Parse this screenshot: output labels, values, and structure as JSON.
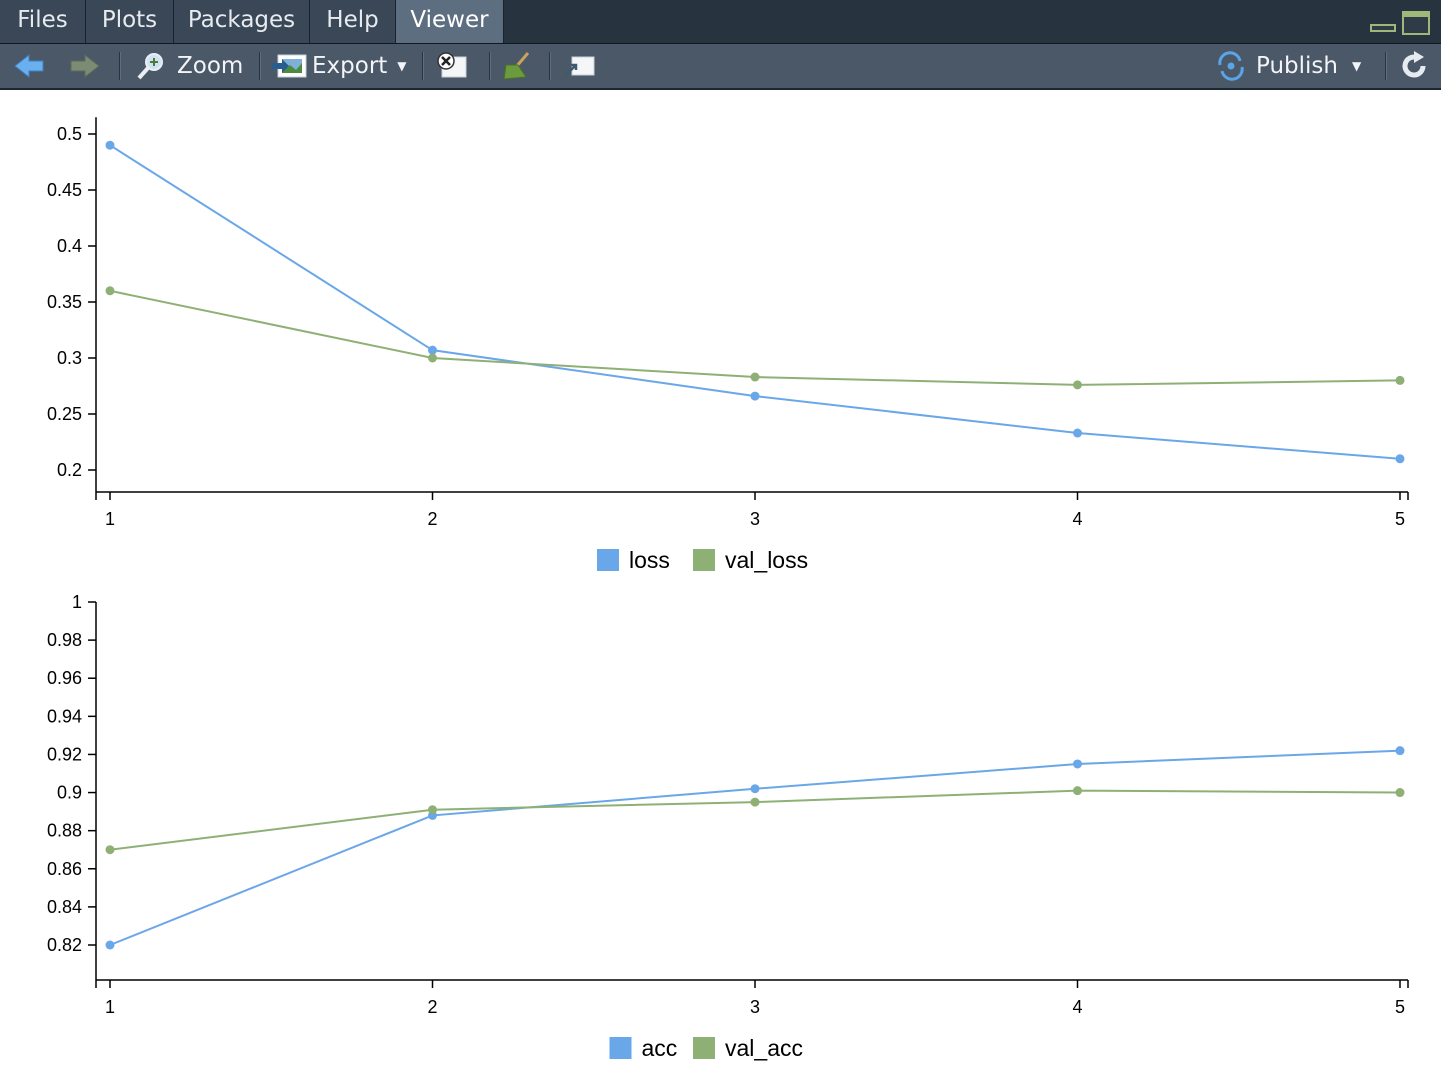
{
  "tabs": [
    {
      "label": "Files",
      "active": false
    },
    {
      "label": "Plots",
      "active": false
    },
    {
      "label": "Packages",
      "active": false
    },
    {
      "label": "Help",
      "active": false
    },
    {
      "label": "Viewer",
      "active": true
    }
  ],
  "toolbar": {
    "back_icon": "back-arrow-icon",
    "forward_icon": "forward-arrow-icon",
    "zoom_label": "Zoom",
    "export_label": "Export",
    "remove_icon": "remove-viewer-icon",
    "clear_icon": "broom-icon",
    "popout_icon": "popout-icon",
    "publish_label": "Publish",
    "refresh_icon": "refresh-icon"
  },
  "colors": {
    "series_a": "#6aa7e8",
    "series_b": "#8fb074",
    "tab_bg": "#3a4756",
    "tab_active": "#5d6e80",
    "toolbar_bg": "#4a5868"
  },
  "chart_data": [
    {
      "type": "line",
      "x": [
        1,
        2,
        3,
        4,
        5
      ],
      "series": [
        {
          "name": "loss",
          "values": [
            0.49,
            0.307,
            0.266,
            0.233,
            0.21
          ]
        },
        {
          "name": "val_loss",
          "values": [
            0.36,
            0.3,
            0.283,
            0.276,
            0.28
          ]
        }
      ],
      "yticks": [
        0.2,
        0.25,
        0.3,
        0.35,
        0.4,
        0.45,
        0.5
      ],
      "ytick_labels": [
        "0.2",
        "0.25",
        "0.3",
        "0.35",
        "0.4",
        "0.45",
        "0.5"
      ],
      "xticks": [
        1,
        2,
        3,
        4,
        5
      ],
      "xtick_labels": [
        "1",
        "2",
        "3",
        "4",
        "5"
      ],
      "ylim": [
        0.18,
        0.515
      ],
      "xlim": [
        1,
        5
      ],
      "grid": false,
      "legend": "bottom-center"
    },
    {
      "type": "line",
      "x": [
        1,
        2,
        3,
        4,
        5
      ],
      "series": [
        {
          "name": "acc",
          "values": [
            0.82,
            0.888,
            0.902,
            0.915,
            0.922
          ]
        },
        {
          "name": "val_acc",
          "values": [
            0.87,
            0.891,
            0.895,
            0.901,
            0.9
          ]
        }
      ],
      "yticks": [
        0.82,
        0.84,
        0.86,
        0.88,
        0.9,
        0.92,
        0.94,
        0.96,
        0.98,
        1
      ],
      "ytick_labels": [
        "0.82",
        "0.84",
        "0.86",
        "0.88",
        "0.9",
        "0.92",
        "0.94",
        "0.96",
        "0.98",
        "1"
      ],
      "xticks": [
        1,
        2,
        3,
        4,
        5
      ],
      "xtick_labels": [
        "1",
        "2",
        "3",
        "4",
        "5"
      ],
      "ylim": [
        0.8,
        1.0
      ],
      "xlim": [
        1,
        5
      ],
      "grid": false,
      "legend": "bottom-center"
    }
  ]
}
